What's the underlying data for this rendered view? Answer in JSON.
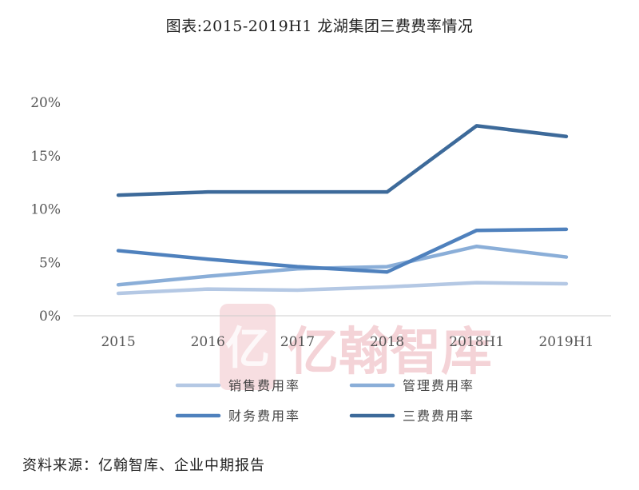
{
  "chart_data": {
    "type": "line",
    "title": "图表:2015-2019H1 龙湖集团三费费率情况",
    "categories": [
      "2015",
      "2016",
      "2017",
      "2018",
      "2018H1",
      "2019H1"
    ],
    "ylim": [
      0,
      20
    ],
    "yticks": [
      "0%",
      "5%",
      "10%",
      "15%",
      "20%"
    ],
    "ytick_values": [
      0,
      5,
      10,
      15,
      20
    ],
    "grid": false,
    "legend_position": "bottom",
    "series": [
      {
        "name": "销售费用率",
        "color": "#b4c8e4",
        "values": [
          2.1,
          2.5,
          2.4,
          2.7,
          3.1,
          3.0
        ]
      },
      {
        "name": "管理费用率",
        "color": "#8aaed8",
        "values": [
          2.9,
          3.7,
          4.4,
          4.6,
          6.5,
          5.5
        ]
      },
      {
        "name": "财务费用率",
        "color": "#4f81bd",
        "values": [
          6.1,
          5.3,
          4.6,
          4.1,
          8.0,
          8.1
        ]
      },
      {
        "name": "三费费用率",
        "color": "#3d6a9a",
        "values": [
          11.3,
          11.6,
          11.6,
          11.6,
          17.8,
          16.8
        ]
      }
    ]
  },
  "watermark": {
    "text": "亿翰智库",
    "logo_glyph": "亿"
  },
  "source": "资料来源：亿翰智库、企业中期报告"
}
